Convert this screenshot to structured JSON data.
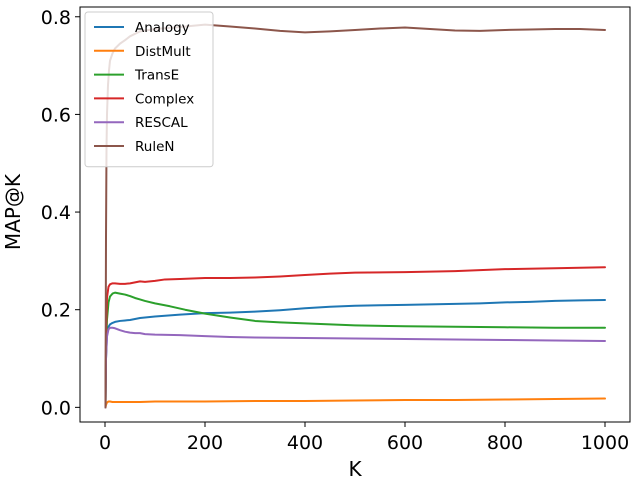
{
  "chart_data": {
    "type": "line",
    "title": "",
    "xlabel": "K",
    "ylabel": "MAP@K",
    "xlim": [
      -50,
      1050
    ],
    "ylim": [
      -0.03,
      0.82
    ],
    "xticks": [
      0,
      200,
      400,
      600,
      800,
      1000
    ],
    "xtick_labels": [
      "0",
      "200",
      "400",
      "600",
      "800",
      "1000"
    ],
    "yticks": [
      0.0,
      0.2,
      0.4,
      0.6,
      0.8
    ],
    "ytick_labels": [
      "0.0",
      "0.2",
      "0.4",
      "0.6",
      "0.8"
    ],
    "grid": false,
    "legend": {
      "placement": "top-left"
    },
    "series": [
      {
        "name": "Analogy",
        "color": "#1f77b4",
        "x": [
          1,
          2,
          4,
          7,
          10,
          15,
          20,
          30,
          40,
          50,
          70,
          100,
          150,
          200,
          250,
          300,
          350,
          400,
          450,
          500,
          550,
          600,
          650,
          700,
          750,
          800,
          850,
          900,
          950,
          1000
        ],
        "y": [
          0.0,
          0.1,
          0.15,
          0.165,
          0.17,
          0.173,
          0.175,
          0.177,
          0.178,
          0.179,
          0.183,
          0.186,
          0.19,
          0.193,
          0.194,
          0.196,
          0.199,
          0.203,
          0.206,
          0.208,
          0.209,
          0.21,
          0.211,
          0.212,
          0.213,
          0.215,
          0.216,
          0.218,
          0.219,
          0.22
        ]
      },
      {
        "name": "DistMult",
        "color": "#ff7f0e",
        "x": [
          1,
          2,
          4,
          7,
          10,
          15,
          20,
          30,
          40,
          50,
          70,
          100,
          150,
          200,
          300,
          400,
          500,
          600,
          700,
          800,
          900,
          1000
        ],
        "y": [
          0.0,
          0.005,
          0.01,
          0.012,
          0.012,
          0.011,
          0.011,
          0.011,
          0.011,
          0.011,
          0.011,
          0.012,
          0.012,
          0.012,
          0.013,
          0.013,
          0.014,
          0.015,
          0.015,
          0.016,
          0.017,
          0.018
        ]
      },
      {
        "name": "TransE",
        "color": "#2ca02c",
        "x": [
          1,
          2,
          4,
          7,
          10,
          15,
          20,
          30,
          40,
          50,
          60,
          70,
          80,
          100,
          130,
          160,
          200,
          250,
          300,
          350,
          400,
          450,
          500,
          600,
          700,
          800,
          900,
          1000
        ],
        "y": [
          0.0,
          0.11,
          0.18,
          0.215,
          0.227,
          0.233,
          0.235,
          0.233,
          0.231,
          0.228,
          0.224,
          0.221,
          0.218,
          0.213,
          0.207,
          0.2,
          0.192,
          0.184,
          0.177,
          0.174,
          0.172,
          0.17,
          0.168,
          0.166,
          0.165,
          0.164,
          0.163,
          0.163
        ]
      },
      {
        "name": "Complex",
        "color": "#d62728",
        "x": [
          1,
          2,
          4,
          7,
          10,
          15,
          20,
          30,
          40,
          50,
          60,
          70,
          80,
          90,
          100,
          120,
          150,
          200,
          250,
          300,
          350,
          400,
          450,
          500,
          600,
          700,
          800,
          900,
          1000
        ],
        "y": [
          0.0,
          0.15,
          0.225,
          0.247,
          0.252,
          0.254,
          0.254,
          0.253,
          0.253,
          0.254,
          0.256,
          0.258,
          0.257,
          0.258,
          0.259,
          0.262,
          0.263,
          0.265,
          0.265,
          0.266,
          0.268,
          0.271,
          0.274,
          0.276,
          0.277,
          0.279,
          0.283,
          0.285,
          0.287
        ]
      },
      {
        "name": "RESCAL",
        "color": "#9467bd",
        "x": [
          1,
          2,
          4,
          7,
          10,
          15,
          20,
          30,
          40,
          50,
          60,
          70,
          80,
          100,
          150,
          200,
          250,
          300,
          400,
          500,
          600,
          700,
          800,
          900,
          1000
        ],
        "y": [
          0.0,
          0.1,
          0.145,
          0.16,
          0.163,
          0.163,
          0.162,
          0.158,
          0.155,
          0.153,
          0.152,
          0.152,
          0.15,
          0.149,
          0.148,
          0.146,
          0.144,
          0.143,
          0.142,
          0.141,
          0.14,
          0.139,
          0.138,
          0.137,
          0.136
        ]
      },
      {
        "name": "RuleN",
        "color": "#8c564b",
        "x": [
          1,
          2,
          3,
          4,
          6,
          8,
          10,
          15,
          20,
          30,
          40,
          50,
          70,
          100,
          150,
          200,
          250,
          300,
          350,
          400,
          450,
          500,
          550,
          600,
          650,
          700,
          750,
          800,
          850,
          900,
          950,
          1000
        ],
        "y": [
          0.0,
          0.35,
          0.53,
          0.6,
          0.66,
          0.69,
          0.71,
          0.725,
          0.735,
          0.745,
          0.752,
          0.76,
          0.77,
          0.775,
          0.779,
          0.784,
          0.78,
          0.776,
          0.771,
          0.768,
          0.77,
          0.773,
          0.776,
          0.778,
          0.775,
          0.772,
          0.771,
          0.773,
          0.774,
          0.775,
          0.775,
          0.773
        ]
      }
    ]
  }
}
